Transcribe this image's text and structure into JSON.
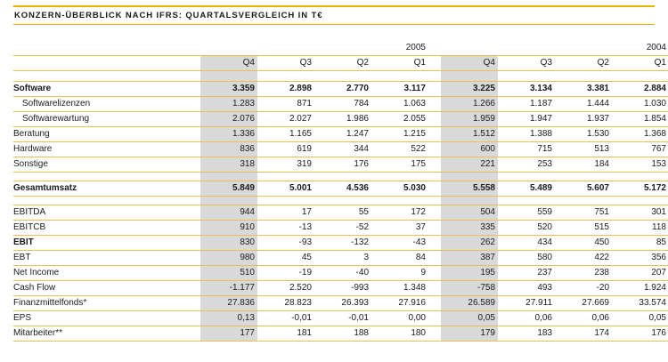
{
  "title": "KONZERN-ÜBERBLICK NACH IFRS: QUARTALSVERGLEICH IN T€",
  "years": [
    "2005",
    "2004"
  ],
  "quarters": [
    "Q4",
    "Q3",
    "Q2",
    "Q1"
  ],
  "rows": [
    {
      "label": "Software",
      "bold": true,
      "gap_before": true,
      "values": [
        "3.359",
        "2.898",
        "2.770",
        "3.117",
        "3.225",
        "3.134",
        "3.381",
        "2.884"
      ]
    },
    {
      "label": "Softwarelizenzen",
      "indent": true,
      "values": [
        "1.283",
        "871",
        "784",
        "1.063",
        "1.266",
        "1.187",
        "1.444",
        "1.030"
      ]
    },
    {
      "label": "Softwarewartung",
      "indent": true,
      "values": [
        "2.076",
        "2.027",
        "1.986",
        "2.055",
        "1.959",
        "1.947",
        "1.937",
        "1.854"
      ]
    },
    {
      "label": "Beratung",
      "values": [
        "1.336",
        "1.165",
        "1.247",
        "1.215",
        "1.512",
        "1.388",
        "1.530",
        "1.368"
      ]
    },
    {
      "label": "Hardware",
      "values": [
        "836",
        "619",
        "344",
        "522",
        "600",
        "715",
        "513",
        "767"
      ]
    },
    {
      "label": "Sonstige",
      "values": [
        "318",
        "319",
        "176",
        "175",
        "221",
        "253",
        "184",
        "153"
      ]
    },
    {
      "label": "Gesamtumsatz",
      "bold": true,
      "gap_before": true,
      "values": [
        "5.849",
        "5.001",
        "4.536",
        "5.030",
        "5.558",
        "5.489",
        "5.607",
        "5.172"
      ]
    },
    {
      "label": "EBITDA",
      "gap_before": true,
      "values": [
        "944",
        "17",
        "55",
        "172",
        "504",
        "559",
        "751",
        "301"
      ]
    },
    {
      "label": "EBITCB",
      "values": [
        "910",
        "-13",
        "-52",
        "37",
        "335",
        "520",
        "515",
        "118"
      ]
    },
    {
      "label": "EBIT",
      "bold_label": true,
      "values": [
        "830",
        "-93",
        "-132",
        "-43",
        "262",
        "434",
        "450",
        "85"
      ]
    },
    {
      "label": "EBT",
      "values": [
        "980",
        "45",
        "3",
        "84",
        "387",
        "580",
        "422",
        "356"
      ]
    },
    {
      "label": "Net Income",
      "values": [
        "510",
        "-19",
        "-40",
        "9",
        "195",
        "237",
        "238",
        "207"
      ]
    },
    {
      "label": "Cash Flow",
      "values": [
        "-1.177",
        "2.520",
        "-993",
        "1.348",
        "-758",
        "493",
        "-20",
        "1.924"
      ]
    },
    {
      "label": "Finanzmittelfonds*",
      "values": [
        "27.836",
        "28.823",
        "26.393",
        "27.916",
        "26.589",
        "27.911",
        "27.669",
        "33.574"
      ]
    },
    {
      "label": "EPS",
      "values": [
        "0,13",
        "-0,01",
        "-0,01",
        "0,00",
        "0,05",
        "0,06",
        "0,06",
        "0,05"
      ]
    },
    {
      "label": "Mitarbeiter**",
      "values": [
        "177",
        "181",
        "188",
        "180",
        "179",
        "183",
        "174",
        "176"
      ]
    }
  ]
}
